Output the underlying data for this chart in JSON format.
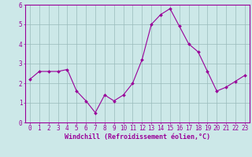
{
  "x": [
    0,
    1,
    2,
    3,
    4,
    5,
    6,
    7,
    8,
    9,
    10,
    11,
    12,
    13,
    14,
    15,
    16,
    17,
    18,
    19,
    20,
    21,
    22,
    23
  ],
  "y": [
    2.2,
    2.6,
    2.6,
    2.6,
    2.7,
    1.6,
    1.1,
    0.5,
    1.4,
    1.1,
    1.4,
    2.0,
    3.2,
    5.0,
    5.5,
    5.8,
    4.9,
    4.0,
    3.6,
    2.6,
    1.6,
    1.8,
    2.1,
    2.4
  ],
  "xlabel": "Windchill (Refroidissement éolien,°C)",
  "ylim": [
    0,
    6
  ],
  "xlim_min": -0.5,
  "xlim_max": 23.5,
  "line_color": "#990099",
  "marker_color": "#990099",
  "bg_color": "#cce8e8",
  "grid_color": "#99bbbb",
  "axis_label_color": "#990099",
  "tick_label_color": "#990099",
  "border_color": "#990099",
  "xlabel_fontsize": 6.0,
  "tick_fontsize": 5.5,
  "yticks": [
    0,
    1,
    2,
    3,
    4,
    5,
    6
  ]
}
